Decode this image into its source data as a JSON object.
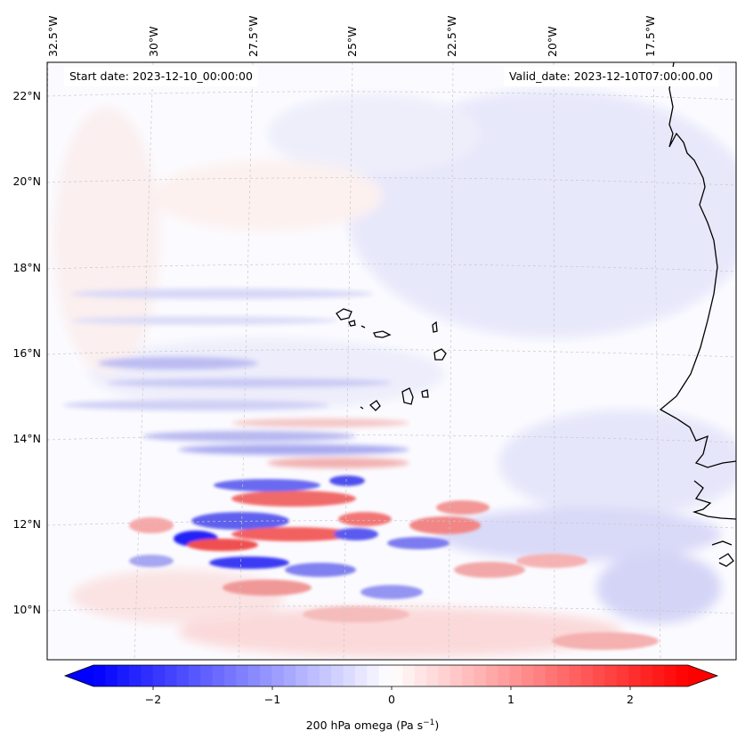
{
  "header": {
    "start_date": "Start date: 2023-12-10_00:00:00",
    "valid_date": "Valid_date: 2023-12-10T07:00:00.00"
  },
  "map": {
    "projection": "lambert-conformal",
    "lon_ticks": [
      "32.5°W",
      "30°W",
      "27.5°W",
      "25°W",
      "22.5°W",
      "20°W",
      "17.5°W"
    ],
    "lat_ticks": [
      "22°N",
      "20°N",
      "18°N",
      "16°N",
      "14°N",
      "12°N",
      "10°N"
    ],
    "gridlines": true,
    "coastlines": true,
    "field": "200 hPa omega",
    "colormap": "bwr"
  },
  "colorbar": {
    "ticks": [
      "−2",
      "−1",
      "0",
      "1",
      "2"
    ],
    "label": "200 hPa omega (Pa s",
    "label_sup": "−1",
    "label_end": ")",
    "range": [
      -2.7,
      2.7
    ],
    "extend": "both",
    "colors": {
      "min": "#0000ff",
      "mid": "#ffffff",
      "max": "#ff0000"
    }
  }
}
